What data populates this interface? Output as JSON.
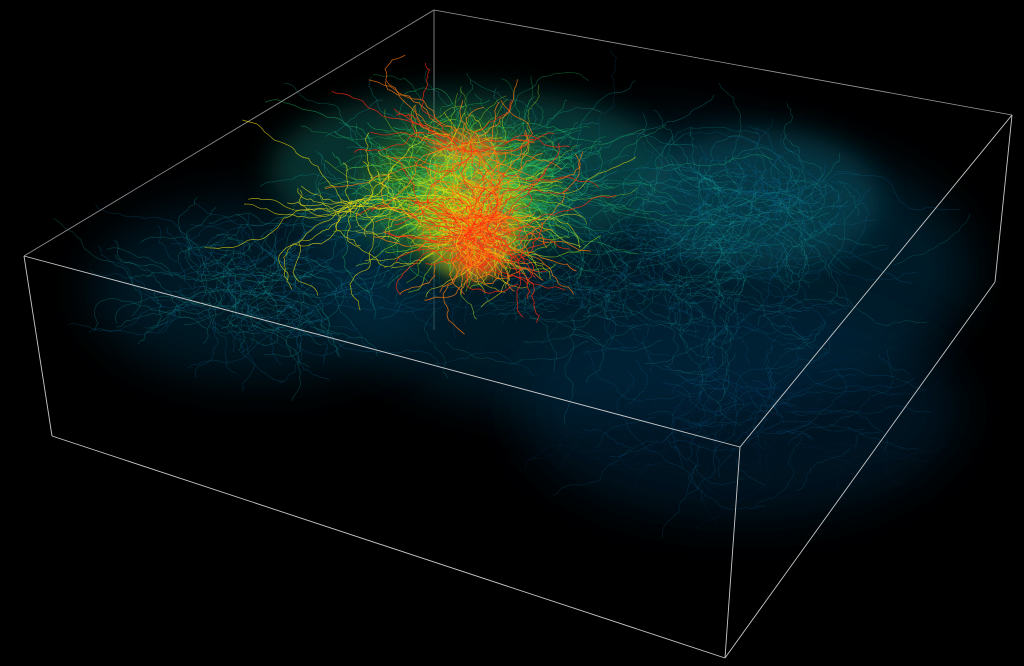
{
  "scene": {
    "subject": "streamline-visualization",
    "background_color": "#000000",
    "bounding_box_color": "#c8c8c8",
    "colormap": [
      "#0a2a55",
      "#0e6a9a",
      "#14a6a0",
      "#1fc76a",
      "#9be01a",
      "#f2e10f",
      "#ff7a10",
      "#ff2a10"
    ]
  }
}
